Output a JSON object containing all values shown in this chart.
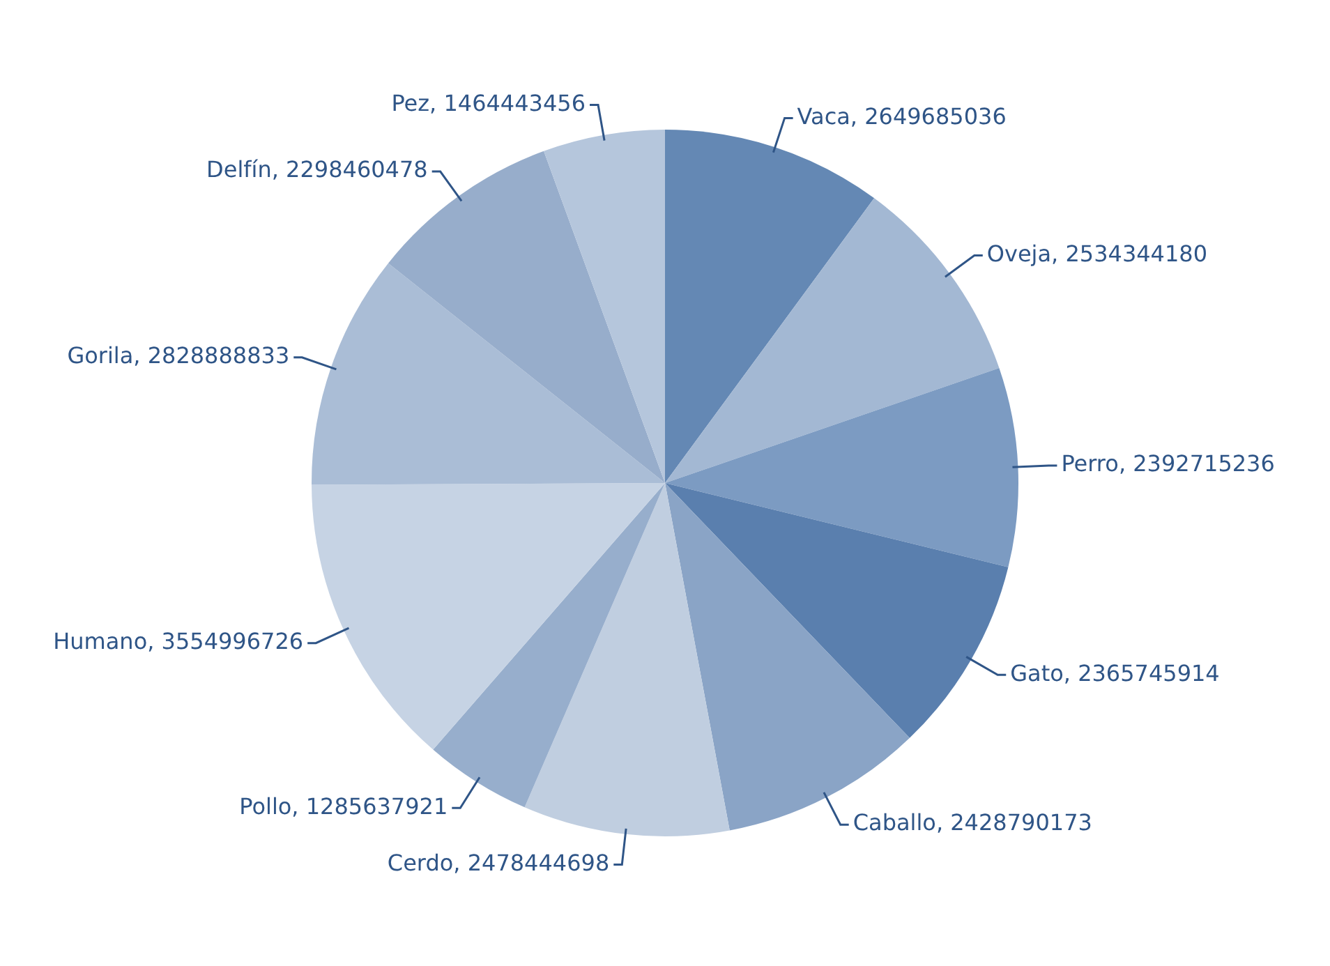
{
  "chart_data": {
    "type": "pie",
    "categories": [
      "Vaca, 2649685036",
      "Oveja, 2534344180",
      "Perro, 2392715236",
      "Gato, 2365745914",
      "Caballo, 2428790173",
      "Cerdo, 2478444698",
      "Pollo, 1285637921",
      "Humano, 3554996726",
      "Gorila, 2828888833",
      "Delfín, 2298460478",
      "Pez, 1464443456"
    ],
    "values": [
      2649685036,
      2534344180,
      2392715236,
      2365745914,
      2428790173,
      2478444698,
      1285637921,
      3554996726,
      2828888833,
      2298460478,
      1464443456
    ],
    "colors": [
      "#6488b4",
      "#a3b8d3",
      "#7c9bc2",
      "#5a7fae",
      "#8aa4c6",
      "#c0cee0",
      "#97aecc",
      "#c6d3e4",
      "#aabdd6",
      "#97adcb",
      "#b5c6dc"
    ],
    "legend": false
  }
}
